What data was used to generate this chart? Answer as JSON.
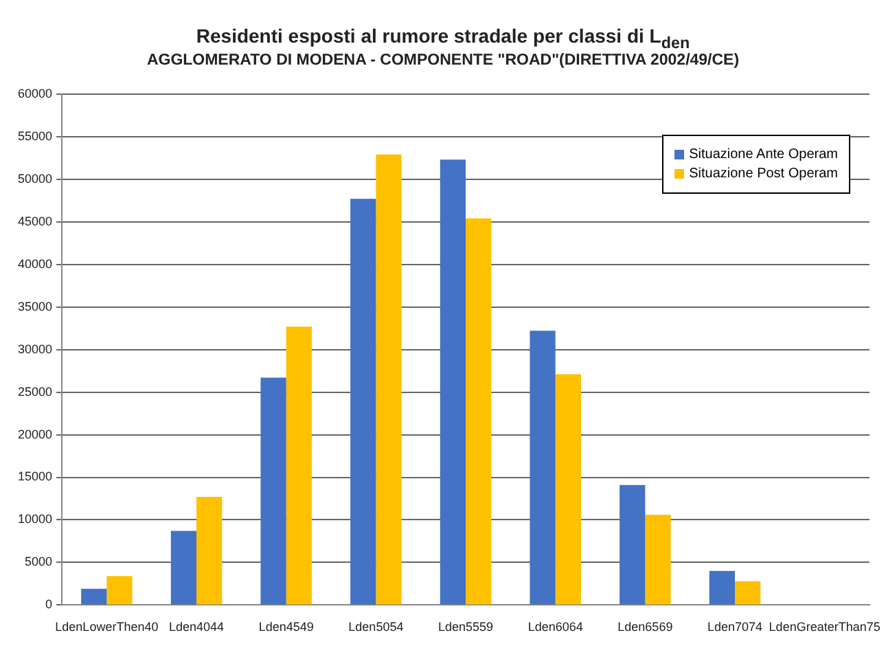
{
  "chart_data": {
    "type": "bar",
    "title": "Residenti esposti al rumore stradale per classi di L$_{den}$",
    "subtitle": "AGGLOMERATO DI MODENA - COMPONENTE \"ROAD\"(DIRETTIVA 2002/49/CE)",
    "categories": [
      "LdenLowerThen40",
      "Lden4044",
      "Lden4549",
      "Lden5054",
      "Lden5559",
      "Lden6064",
      "Lden6569",
      "Lden7074",
      "LdenGreaterThan75"
    ],
    "series": [
      {
        "name": "Situazione Ante Operam",
        "color": "#4472c4",
        "values": [
          1900,
          8700,
          26700,
          47700,
          52300,
          32200,
          14100,
          4000,
          null
        ]
      },
      {
        "name": "Situazione Post Operam",
        "color": "#ffc000",
        "values": [
          3400,
          12700,
          32700,
          52900,
          45400,
          27100,
          10600,
          2800,
          null
        ]
      }
    ],
    "ylim": [
      0,
      60000
    ],
    "yticks": [
      0,
      5000,
      10000,
      15000,
      20000,
      25000,
      30000,
      35000,
      40000,
      45000,
      50000,
      55000,
      60000
    ],
    "grid": "y",
    "legend": "top right"
  }
}
